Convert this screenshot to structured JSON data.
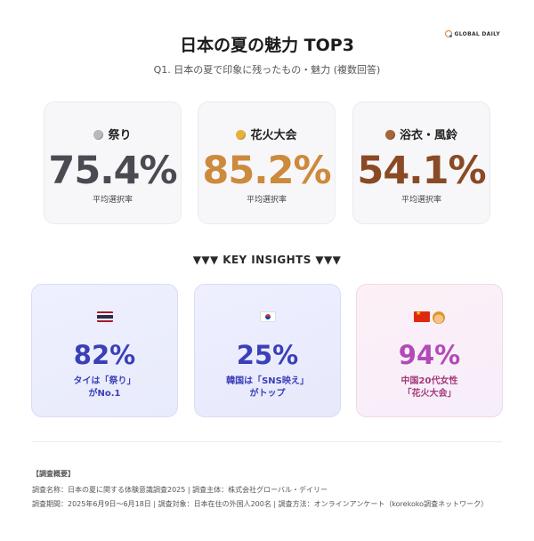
{
  "brand": {
    "name": "GLOBAL DAILY",
    "icon": "globe-logo-icon",
    "colors": [
      "#e07a2a",
      "#3a6fd0"
    ]
  },
  "header": {
    "title": "日本の夏の魅力 TOP3",
    "subtitle": "Q1. 日本の夏で印象に残ったもの・魅力 (複数回答)"
  },
  "top3": [
    {
      "medal": "silver-medal-icon",
      "medal_color": "#b9b9b9",
      "label": "祭り",
      "value": "75.4%",
      "caption": "平均選択率",
      "color": "#4a4a52"
    },
    {
      "medal": "gold-medal-icon",
      "medal_color": "#e6b33a",
      "label": "花火大会",
      "value": "85.2%",
      "caption": "平均選択率",
      "color": "#cc8a3c"
    },
    {
      "medal": "bronze-medal-icon",
      "medal_color": "#a8643a",
      "label": "浴衣・風鈴",
      "value": "54.1%",
      "caption": "平均選択率",
      "color": "#8a4a24"
    }
  ],
  "insights": {
    "heading": "▼▼▼ KEY INSIGHTS ▼▼▼",
    "cards": [
      {
        "icon": "thailand-flag-icon",
        "value": "82%",
        "line1": "タイは「祭り」",
        "line2": "がNo.1",
        "value_color": "#3b3fb8",
        "text_color": "#3b3fb8"
      },
      {
        "icon": "south-korea-flag-icon",
        "value": "25%",
        "line1": "韓国は「SNS映え」",
        "line2": "がトップ",
        "value_color": "#3b3fb8",
        "text_color": "#3b3fb8"
      },
      {
        "icon": "china-flag-icon",
        "icon2": "woman-icon",
        "value": "94%",
        "line1": "中国20代女性",
        "line2": "「花火大会」",
        "value_color": "#b24ab8",
        "text_color": "#a43a7a"
      }
    ]
  },
  "footer": {
    "heading": "【調査概要】",
    "line1": "調査名称：日本の夏に関する体験意識調査2025 | 調査主体：株式会社グローバル・デイリー",
    "line2": "調査期間：2025年6月9日〜6月18日 | 調査対象：日本在住の外国人200名 | 調査方法：オンラインアンケート（korekoko調査ネットワーク）"
  }
}
